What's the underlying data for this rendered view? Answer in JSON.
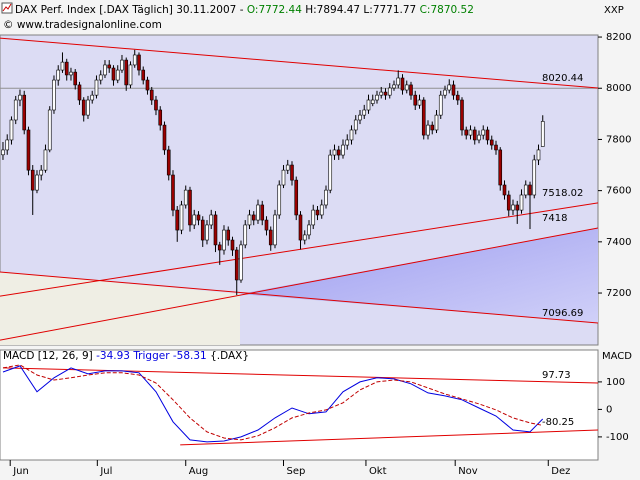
{
  "chart_data": [
    {
      "type": "candlestick",
      "title": "DAX Perf. Index [.DAX  Täglich] 30.11.2007 -",
      "ohlc_labels": [
        "O:",
        "H:",
        "L:",
        "C:"
      ],
      "copyright": "© www.tradesignalonline.com",
      "axis_label": "XXP",
      "up_color": "#ffffff",
      "down_color": "#9a0000",
      "line_color": "#e00000",
      "xlim": [
        -0.7,
        140
      ],
      "xticks": [
        {
          "value": 1.7,
          "label": "Jun"
        },
        {
          "value": 22.2,
          "label": "Jul"
        },
        {
          "value": 43,
          "label": "Aug"
        },
        {
          "value": 66,
          "label": "Sep"
        },
        {
          "value": 85.4,
          "label": "Okt"
        },
        {
          "value": 106.4,
          "label": "Nov"
        },
        {
          "value": 128.3,
          "label": "Dez"
        }
      ],
      "ylim": [
        6997,
        8208
      ],
      "yticks": [
        7200,
        7400,
        7600,
        7800,
        8000,
        8200
      ],
      "horizontal_line": 8000,
      "trendlines": [
        {
          "level": 8020.44,
          "y_start": 8196,
          "y_end": 8001
        },
        {
          "level": 7518.02,
          "y_start": 7188,
          "y_end": 7552
        },
        {
          "level": 7418,
          "y_start": 7016,
          "y_end": 7454
        },
        {
          "level": 7096.69,
          "y_start": 7282,
          "y_end": 7083
        }
      ],
      "ohlc": [
        [
          7740,
          7790,
          7720,
          7759
        ],
        [
          7759,
          7820,
          7740,
          7798
        ],
        [
          7798,
          7890,
          7780,
          7876
        ],
        [
          7876,
          7970,
          7860,
          7954
        ],
        [
          7954,
          7995,
          7930,
          7973
        ],
        [
          7973,
          7990,
          7820,
          7837
        ],
        [
          7837,
          7850,
          7660,
          7680
        ],
        [
          7680,
          7700,
          7505,
          7602
        ],
        [
          7602,
          7680,
          7590,
          7661
        ],
        [
          7661,
          7700,
          7640,
          7680
        ],
        [
          7680,
          7780,
          7670,
          7759
        ],
        [
          7759,
          7930,
          7750,
          7915
        ],
        [
          7915,
          8050,
          7900,
          8032
        ],
        [
          8032,
          8090,
          8010,
          8071
        ],
        [
          8071,
          8140,
          8060,
          8102
        ],
        [
          8102,
          8115,
          8030,
          8052
        ],
        [
          8052,
          8080,
          8030,
          8063
        ],
        [
          8063,
          8075,
          7995,
          8013
        ],
        [
          8013,
          8025,
          7935,
          7954
        ],
        [
          7954,
          7965,
          7870,
          7895
        ],
        [
          7895,
          7970,
          7880,
          7954
        ],
        [
          7954,
          7990,
          7940,
          7973
        ],
        [
          7973,
          8050,
          7960,
          8032
        ],
        [
          8032,
          8070,
          8015,
          8052
        ],
        [
          8052,
          8110,
          8040,
          8091
        ],
        [
          8091,
          8110,
          8060,
          8079
        ],
        [
          8079,
          8090,
          8010,
          8032
        ],
        [
          8032,
          8090,
          8020,
          8071
        ],
        [
          8071,
          8130,
          8060,
          8110
        ],
        [
          8110,
          8120,
          7990,
          8013
        ],
        [
          8013,
          8105,
          8000,
          8091
        ],
        [
          8091,
          8150,
          8080,
          8130
        ],
        [
          8130,
          8140,
          8050,
          8071
        ],
        [
          8071,
          8085,
          8015,
          8032
        ],
        [
          8032,
          8045,
          7975,
          7993
        ],
        [
          7993,
          8005,
          7935,
          7954
        ],
        [
          7954,
          7970,
          7895,
          7915
        ],
        [
          7915,
          7930,
          7835,
          7856
        ],
        [
          7856,
          7870,
          7740,
          7759
        ],
        [
          7759,
          7775,
          7640,
          7661
        ],
        [
          7661,
          7680,
          7500,
          7524
        ],
        [
          7524,
          7540,
          7400,
          7446
        ],
        [
          7446,
          7560,
          7430,
          7544
        ],
        [
          7544,
          7620,
          7530,
          7602
        ],
        [
          7602,
          7615,
          7440,
          7466
        ],
        [
          7466,
          7525,
          7450,
          7505
        ],
        [
          7505,
          7520,
          7465,
          7485
        ],
        [
          7485,
          7500,
          7380,
          7407
        ],
        [
          7407,
          7485,
          7390,
          7466
        ],
        [
          7466,
          7525,
          7450,
          7505
        ],
        [
          7505,
          7520,
          7360,
          7388
        ],
        [
          7388,
          7400,
          7310,
          7368
        ],
        [
          7368,
          7465,
          7350,
          7446
        ],
        [
          7446,
          7460,
          7385,
          7407
        ],
        [
          7407,
          7420,
          7345,
          7368
        ],
        [
          7368,
          7380,
          7192,
          7251
        ],
        [
          7251,
          7405,
          7240,
          7388
        ],
        [
          7388,
          7485,
          7375,
          7466
        ],
        [
          7466,
          7525,
          7450,
          7505
        ],
        [
          7505,
          7520,
          7465,
          7485
        ],
        [
          7485,
          7565,
          7470,
          7544
        ],
        [
          7544,
          7560,
          7465,
          7485
        ],
        [
          7485,
          7500,
          7425,
          7446
        ],
        [
          7446,
          7460,
          7365,
          7388
        ],
        [
          7388,
          7525,
          7375,
          7505
        ],
        [
          7505,
          7640,
          7490,
          7622
        ],
        [
          7622,
          7700,
          7610,
          7680
        ],
        [
          7680,
          7720,
          7665,
          7700
        ],
        [
          7700,
          7715,
          7620,
          7641
        ],
        [
          7641,
          7655,
          7485,
          7505
        ],
        [
          7505,
          7520,
          7370,
          7407
        ],
        [
          7407,
          7445,
          7390,
          7427
        ],
        [
          7427,
          7485,
          7410,
          7466
        ],
        [
          7466,
          7545,
          7450,
          7524
        ],
        [
          7524,
          7540,
          7485,
          7505
        ],
        [
          7505,
          7565,
          7490,
          7544
        ],
        [
          7544,
          7620,
          7530,
          7602
        ],
        [
          7602,
          7760,
          7590,
          7739
        ],
        [
          7739,
          7780,
          7720,
          7759
        ],
        [
          7759,
          7775,
          7720,
          7739
        ],
        [
          7739,
          7800,
          7725,
          7778
        ],
        [
          7778,
          7820,
          7760,
          7798
        ],
        [
          7798,
          7855,
          7780,
          7837
        ],
        [
          7837,
          7895,
          7820,
          7876
        ],
        [
          7876,
          7915,
          7860,
          7895
        ],
        [
          7895,
          7935,
          7880,
          7915
        ],
        [
          7915,
          7975,
          7900,
          7954
        ],
        [
          7940,
          7975,
          7930,
          7954
        ],
        [
          7954,
          7990,
          7940,
          7973
        ],
        [
          7973,
          8005,
          7960,
          7985
        ],
        [
          7985,
          8000,
          7955,
          7973
        ],
        [
          7973,
          8020,
          7960,
          8001
        ],
        [
          8001,
          8030,
          7990,
          8013
        ],
        [
          8013,
          8070,
          8000,
          8040
        ],
        [
          8040,
          8055,
          7975,
          7993
        ],
        [
          7993,
          8030,
          7980,
          8013
        ],
        [
          8013,
          8025,
          7955,
          7973
        ],
        [
          7973,
          7990,
          7915,
          7934
        ],
        [
          7934,
          7975,
          7920,
          7954
        ],
        [
          7954,
          7965,
          7800,
          7817
        ],
        [
          7817,
          7875,
          7800,
          7856
        ],
        [
          7856,
          7870,
          7820,
          7837
        ],
        [
          7837,
          7915,
          7825,
          7895
        ],
        [
          7895,
          7990,
          7880,
          7973
        ],
        [
          7973,
          8010,
          7960,
          7993
        ],
        [
          7993,
          8035,
          7980,
          8013
        ],
        [
          8013,
          8030,
          7955,
          7973
        ],
        [
          7973,
          7990,
          7935,
          7954
        ],
        [
          7954,
          7965,
          7815,
          7837
        ],
        [
          7837,
          7850,
          7800,
          7817
        ],
        [
          7817,
          7855,
          7800,
          7837
        ],
        [
          7837,
          7850,
          7780,
          7798
        ],
        [
          7798,
          7835,
          7785,
          7817
        ],
        [
          7817,
          7855,
          7800,
          7837
        ],
        [
          7837,
          7850,
          7780,
          7798
        ],
        [
          7798,
          7815,
          7760,
          7778
        ],
        [
          7778,
          7795,
          7740,
          7759
        ],
        [
          7759,
          7770,
          7600,
          7622
        ],
        [
          7622,
          7640,
          7565,
          7583
        ],
        [
          7583,
          7600,
          7500,
          7524
        ],
        [
          7524,
          7565,
          7505,
          7544
        ],
        [
          7544,
          7560,
          7470,
          7524
        ],
        [
          7524,
          7605,
          7510,
          7583
        ],
        [
          7583,
          7640,
          7570,
          7622
        ],
        [
          7622,
          7635,
          7450,
          7583
        ],
        [
          7583,
          7740,
          7570,
          7720
        ],
        [
          7720,
          7780,
          7700,
          7759
        ],
        [
          7772.44,
          7894.47,
          7771.77,
          7870.52
        ]
      ]
    },
    {
      "type": "macd",
      "title": "MACD [12, 26, 9]",
      "symbol": "{.DAX}",
      "axis_label": "MACD",
      "line_color": "#e00000",
      "x": [
        0,
        4,
        8,
        12,
        16,
        20,
        24,
        28,
        32,
        36,
        40,
        44,
        48,
        52,
        56,
        60,
        64,
        68,
        72,
        76,
        80,
        84,
        88,
        92,
        96,
        100,
        104,
        108,
        112,
        116,
        120,
        124,
        127
      ],
      "ylim": [
        -184,
        216
      ],
      "yticks": [
        100,
        0,
        -100
      ],
      "series": [
        {
          "color": "#0000e0",
          "values": [
            136,
            158,
            64,
            115,
            151,
            129,
            140,
            140,
            133,
            64,
            -45,
            -111,
            -118,
            -115,
            -100,
            -75,
            -31,
            5,
            -16,
            -9,
            64,
            100,
            115,
            111,
            93,
            60,
            49,
            35,
            5,
            -24,
            -75,
            -82,
            -34.93
          ]
        },
        {
          "name": "Trigger",
          "color": "#c00000",
          "values": [
            151,
            162,
            125,
            107,
            115,
            125,
            133,
            133,
            125,
            96,
            35,
            -31,
            -82,
            -104,
            -111,
            -96,
            -67,
            -31,
            -13,
            -2,
            24,
            71,
            100,
            107,
            100,
            78,
            56,
            38,
            20,
            -2,
            -31,
            -49,
            -58.31
          ]
        }
      ],
      "trendlines": [
        {
          "level": 97.73,
          "x_start": 0,
          "x_end": 140,
          "y_start": 151,
          "y_end": 96
        },
        {
          "level": -80.25,
          "x_start": 41.7,
          "x_end": 140,
          "y_start": -129,
          "y_end": -75
        }
      ]
    }
  ]
}
